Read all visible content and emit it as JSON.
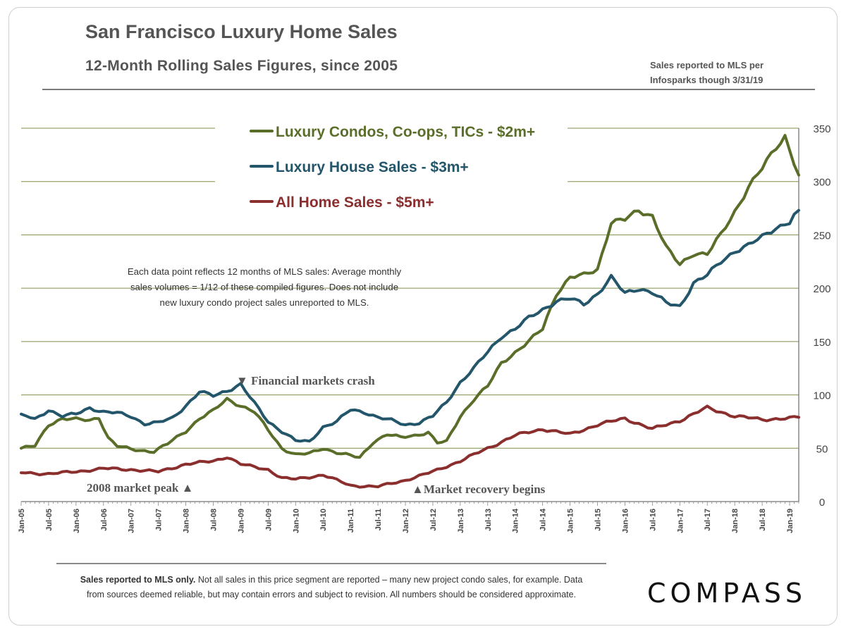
{
  "header": {
    "title": "San Francisco Luxury Home Sales",
    "subtitle": "12-Month Rolling Sales Figures, since 2005",
    "source_note_1": "Sales reported to MLS per",
    "source_note_2": "Infosparks though 3/31/19"
  },
  "footer": {
    "bold_lead": "Sales reported  to MLS only.",
    "text": " Not all sales in this price segment are reported  – many new project condo sales, for example. Data from sources deemed reliable, but may contain errors and subject to revision. All numbers should be considered  approximate.",
    "logo": "COMPASS"
  },
  "colors": {
    "condos": "#5a6e2a",
    "houses": "#23566a",
    "allhomes": "#8b2e2e",
    "grid": "#7f8f4a",
    "annotation": "#555555"
  },
  "chart_data": {
    "type": "line",
    "title": "San Francisco Luxury Home Sales",
    "x_tick_labels": [
      "Jan-05",
      "Jul-05",
      "Jan-06",
      "Jul-06",
      "Jan-07",
      "Jul-07",
      "Jan-08",
      "Jul-08",
      "Jan-09",
      "Jul-09",
      "Jan-10",
      "Jul-10",
      "Jan-11",
      "Jul-11",
      "Jan-12",
      "Jul-12",
      "Jan-13",
      "Jul-13",
      "Jan-14",
      "Jul-14",
      "Jan-15",
      "Jul-15",
      "Jan-16",
      "Jul-16",
      "Jan-17",
      "Jul-17",
      "Jan-18",
      "Jul-18",
      "Jan-19"
    ],
    "y_ticks": [
      0,
      50,
      100,
      150,
      200,
      250,
      300,
      350
    ],
    "ylim": [
      0,
      350
    ],
    "grid": true,
    "legend_position": "top-center",
    "x_start": "Jan-05",
    "x_end": "Mar-19",
    "points_per_series": 171,
    "series": [
      {
        "name": "Luxury Condos, Co-ops, TICs - $2m+",
        "color": "#5a6e2a",
        "anchors": [
          [
            "Jan-05",
            50
          ],
          [
            "Apr-05",
            52
          ],
          [
            "Jul-05",
            72
          ],
          [
            "Oct-05",
            78
          ],
          [
            "Jan-06",
            77
          ],
          [
            "Apr-06",
            76
          ],
          [
            "Jun-06",
            79
          ],
          [
            "Aug-06",
            60
          ],
          [
            "Oct-06",
            52
          ],
          [
            "Jan-07",
            49
          ],
          [
            "Mar-07",
            48
          ],
          [
            "Jun-07",
            47
          ],
          [
            "Sep-07",
            54
          ],
          [
            "Jan-08",
            66
          ],
          [
            "Apr-08",
            78
          ],
          [
            "Jul-08",
            85
          ],
          [
            "Oct-08",
            96
          ],
          [
            "Jan-09",
            90
          ],
          [
            "Apr-09",
            84
          ],
          [
            "Jul-09",
            67
          ],
          [
            "Oct-09",
            50
          ],
          [
            "Jan-10",
            44
          ],
          [
            "Apr-10",
            45
          ],
          [
            "Jul-10",
            50
          ],
          [
            "Oct-10",
            46
          ],
          [
            "Jan-11",
            43
          ],
          [
            "Mar-11",
            41
          ],
          [
            "Jun-11",
            56
          ],
          [
            "Sep-11",
            63
          ],
          [
            "Dec-11",
            60
          ],
          [
            "Mar-12",
            62
          ],
          [
            "Jun-12",
            65
          ],
          [
            "Aug-12",
            55
          ],
          [
            "Oct-12",
            56
          ],
          [
            "Jan-13",
            80
          ],
          [
            "Apr-13",
            96
          ],
          [
            "Jul-13",
            108
          ],
          [
            "Oct-13",
            130
          ],
          [
            "Jan-14",
            140
          ],
          [
            "Apr-14",
            150
          ],
          [
            "Jul-14",
            162
          ],
          [
            "Oct-14",
            195
          ],
          [
            "Jan-15",
            210
          ],
          [
            "Apr-15",
            212
          ],
          [
            "Jul-15",
            218
          ],
          [
            "Oct-15",
            262
          ],
          [
            "Jan-16",
            264
          ],
          [
            "Apr-16",
            273
          ],
          [
            "Jul-16",
            268
          ],
          [
            "Oct-16",
            238
          ],
          [
            "Jan-17",
            222
          ],
          [
            "Apr-17",
            233
          ],
          [
            "Jul-17",
            232
          ],
          [
            "Oct-17",
            250
          ],
          [
            "Jan-18",
            272
          ],
          [
            "Apr-18",
            295
          ],
          [
            "Jul-18",
            312
          ],
          [
            "Oct-18",
            332
          ],
          [
            "Dec-18",
            343
          ],
          [
            "Jan-19",
            330
          ],
          [
            "Mar-19",
            306
          ]
        ]
      },
      {
        "name": "Luxury House Sales - $3m+",
        "color": "#23566a",
        "anchors": [
          [
            "Jan-05",
            82
          ],
          [
            "Apr-05",
            77
          ],
          [
            "Jul-05",
            86
          ],
          [
            "Oct-05",
            80
          ],
          [
            "Jan-06",
            82
          ],
          [
            "Apr-06",
            88
          ],
          [
            "Jul-06",
            84
          ],
          [
            "Oct-06",
            83
          ],
          [
            "Jan-07",
            80
          ],
          [
            "Apr-07",
            73
          ],
          [
            "Jul-07",
            74
          ],
          [
            "Oct-07",
            78
          ],
          [
            "Jan-08",
            90
          ],
          [
            "Apr-08",
            103
          ],
          [
            "Jul-08",
            99
          ],
          [
            "Oct-08",
            104
          ],
          [
            "Jan-09",
            110
          ],
          [
            "Apr-09",
            92
          ],
          [
            "Jul-09",
            75
          ],
          [
            "Oct-09",
            66
          ],
          [
            "Jan-10",
            57
          ],
          [
            "Apr-10",
            56
          ],
          [
            "Jul-10",
            70
          ],
          [
            "Oct-10",
            75
          ],
          [
            "Jan-11",
            86
          ],
          [
            "Apr-11",
            84
          ],
          [
            "Jul-11",
            79
          ],
          [
            "Oct-11",
            76
          ],
          [
            "Jan-12",
            72
          ],
          [
            "Apr-12",
            74
          ],
          [
            "Jul-12",
            80
          ],
          [
            "Oct-12",
            93
          ],
          [
            "Jan-13",
            112
          ],
          [
            "Apr-13",
            125
          ],
          [
            "Jul-13",
            140
          ],
          [
            "Oct-13",
            155
          ],
          [
            "Jan-14",
            162
          ],
          [
            "Apr-14",
            172
          ],
          [
            "Jul-14",
            180
          ],
          [
            "Oct-14",
            188
          ],
          [
            "Jan-15",
            190
          ],
          [
            "Apr-15",
            185
          ],
          [
            "Jul-15",
            195
          ],
          [
            "Oct-15",
            210
          ],
          [
            "Jan-16",
            195
          ],
          [
            "Apr-16",
            200
          ],
          [
            "Jul-16",
            196
          ],
          [
            "Oct-16",
            186
          ],
          [
            "Jan-17",
            183
          ],
          [
            "Apr-17",
            205
          ],
          [
            "Jul-17",
            212
          ],
          [
            "Oct-17",
            225
          ],
          [
            "Jan-18",
            235
          ],
          [
            "Apr-18",
            240
          ],
          [
            "Jul-18",
            248
          ],
          [
            "Oct-18",
            257
          ],
          [
            "Jan-19",
            262
          ],
          [
            "Feb-19",
            268
          ],
          [
            "Mar-19",
            273
          ]
        ]
      },
      {
        "name": "All Home Sales - $5m+",
        "color": "#8b2e2e",
        "anchors": [
          [
            "Jan-05",
            27
          ],
          [
            "Jul-05",
            26
          ],
          [
            "Jan-06",
            28
          ],
          [
            "Jul-06",
            31
          ],
          [
            "Jan-07",
            30
          ],
          [
            "Jul-07",
            28
          ],
          [
            "Jan-08",
            35
          ],
          [
            "Jul-08",
            38
          ],
          [
            "Oct-08",
            42
          ],
          [
            "Jan-09",
            35
          ],
          [
            "Jul-09",
            30
          ],
          [
            "Oct-09",
            22
          ],
          [
            "Jan-10",
            21
          ],
          [
            "Jul-10",
            25
          ],
          [
            "Jan-11",
            15
          ],
          [
            "Jul-11",
            14
          ],
          [
            "Jan-12",
            20
          ],
          [
            "Jul-12",
            28
          ],
          [
            "Jan-13",
            38
          ],
          [
            "Jul-13",
            50
          ],
          [
            "Jan-14",
            62
          ],
          [
            "Jul-14",
            68
          ],
          [
            "Jan-15",
            63
          ],
          [
            "Jul-15",
            72
          ],
          [
            "Jan-16",
            78
          ],
          [
            "Jul-16",
            68
          ],
          [
            "Jan-17",
            76
          ],
          [
            "Jul-17",
            88
          ],
          [
            "Jan-18",
            80
          ],
          [
            "Jul-18",
            77
          ],
          [
            "Jan-19",
            78
          ],
          [
            "Mar-19",
            79
          ]
        ]
      }
    ]
  },
  "annotations": {
    "crash": "▼  Financial markets crash",
    "peak": "2008 market peak  ▲",
    "recovery": "▲Market recovery begins",
    "explain_1": "Each data point reflects 12 months of MLS sales:  Average monthly",
    "explain_2": "sales volumes = 1/12 of these compiled figures. Does not include",
    "explain_3": "new luxury condo project sales unreported to MLS."
  }
}
